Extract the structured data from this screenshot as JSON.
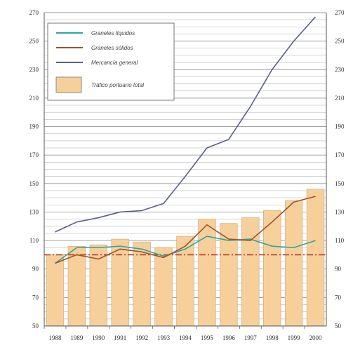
{
  "chart_data": {
    "type": "bar+line",
    "title": "",
    "xlabel": "",
    "ylabel": "",
    "x": [
      "1988",
      "1989",
      "1990",
      "1991",
      "1992",
      "1993",
      "1994",
      "1995",
      "1996",
      "1997",
      "1998",
      "1999",
      "2000"
    ],
    "ylim": [
      50,
      270
    ],
    "yticks": [
      50,
      70,
      90,
      110,
      130,
      150,
      170,
      190,
      210,
      230,
      250,
      270
    ],
    "grid": true,
    "legend": "top-left",
    "reference_line": {
      "value": 100,
      "color": "#c0392b"
    },
    "bars": {
      "name": "Tráfico portuario total",
      "color": "#f7cf9b",
      "values": [
        100,
        106,
        107,
        111,
        109,
        105,
        113,
        125,
        122,
        126,
        131,
        138,
        146
      ]
    },
    "series": [
      {
        "name": "Graneles líquidos",
        "color": "#2aa7a0",
        "values": [
          94,
          105,
          105,
          106,
          104,
          99,
          104,
          113,
          110,
          111,
          106,
          105,
          110
        ]
      },
      {
        "name": "Graneles sólidos",
        "color": "#a0522d",
        "values": [
          94,
          100,
          97,
          104,
          102,
          98,
          106,
          121,
          111,
          110,
          123,
          137,
          141
        ]
      },
      {
        "name": "Mercancía general",
        "color": "#5b5e8f",
        "values": [
          116,
          123,
          126,
          130,
          131,
          136,
          155,
          175,
          181,
          204,
          230,
          250,
          267
        ]
      }
    ]
  }
}
